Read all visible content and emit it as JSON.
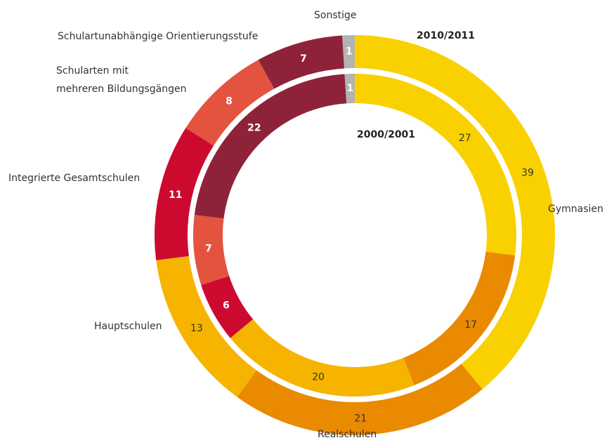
{
  "chart_data": {
    "type": "donut",
    "categories": [
      "Gymnasien",
      "Realschulen",
      "Hauptschulen",
      "Integrierte Gesamtschulen",
      "Schularten mit\nmehreren Bildungsgängen",
      "Schulartunabhängige Orientierungsstufe",
      "Sonstige"
    ],
    "colors": [
      "#f9d100",
      "#ea8a00",
      "#f6b400",
      "#cc0a30",
      "#e4533f",
      "#8e2239",
      "#b3b3b3"
    ],
    "series": [
      {
        "name": "2010/2011",
        "values": [
          39,
          21,
          13,
          11,
          8,
          7,
          1
        ]
      },
      {
        "name": "2000/2001",
        "values": [
          27,
          17,
          20,
          6,
          7,
          22,
          1
        ]
      }
    ]
  }
}
